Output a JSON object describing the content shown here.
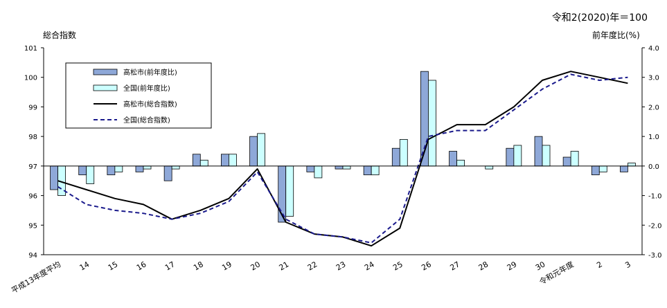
{
  "chart_data": {
    "type": "bar",
    "title": "",
    "note": "令和2(2020)年＝100",
    "ylabel_left": "総合指数",
    "ylabel_right": "前年度比(%)",
    "ylim_left": [
      94,
      101
    ],
    "ylim_right": [
      -3.0,
      4.0
    ],
    "yticks_left": [
      "94",
      "95",
      "96",
      "97",
      "98",
      "99",
      "100",
      "101"
    ],
    "yticks_right": [
      "-3.0",
      "-2.0",
      "-1.0",
      "0.0",
      "1.0",
      "2.0",
      "3.0",
      "4.0"
    ],
    "categories": [
      "平成13年度平均",
      "14",
      "15",
      "16",
      "17",
      "18",
      "19",
      "20",
      "21",
      "22",
      "23",
      "24",
      "25",
      "26",
      "27",
      "28",
      "29",
      "30",
      "令和元年度",
      "2",
      "3"
    ],
    "series": [
      {
        "name": "高松市(前年度比)",
        "kind": "bar",
        "axis": "right",
        "color": "#8ea8d8",
        "values": [
          -0.8,
          -0.3,
          -0.3,
          -0.2,
          -0.5,
          0.4,
          0.4,
          1.0,
          -1.9,
          -0.2,
          -0.1,
          -0.3,
          0.6,
          3.2,
          0.5,
          0.0,
          0.6,
          1.0,
          0.3,
          -0.3,
          -0.2
        ]
      },
      {
        "name": "全国(前年度比)",
        "kind": "bar",
        "axis": "right",
        "color": "#ccffff",
        "values": [
          -1.0,
          -0.6,
          -0.2,
          -0.1,
          -0.1,
          0.2,
          0.4,
          1.1,
          -1.7,
          -0.4,
          -0.1,
          -0.3,
          0.9,
          2.9,
          0.2,
          -0.1,
          0.7,
          0.7,
          0.5,
          -0.2,
          0.1
        ]
      },
      {
        "name": "高松市(総合指数)",
        "kind": "line",
        "axis": "left",
        "color": "#000000",
        "dash": "solid",
        "values": [
          96.5,
          96.2,
          95.9,
          95.7,
          95.2,
          95.5,
          95.9,
          96.9,
          95.1,
          94.7,
          94.6,
          94.3,
          94.9,
          97.9,
          98.4,
          98.4,
          99.0,
          99.9,
          100.2,
          100.0,
          99.8
        ]
      },
      {
        "name": "全国(総合指数)",
        "kind": "line",
        "axis": "left",
        "color": "#1a1a8c",
        "dash": "dashed",
        "values": [
          96.3,
          95.7,
          95.5,
          95.4,
          95.2,
          95.4,
          95.8,
          96.8,
          95.2,
          94.7,
          94.6,
          94.4,
          95.2,
          98.0,
          98.2,
          98.2,
          98.9,
          99.6,
          100.1,
          99.9,
          100.0
        ]
      }
    ],
    "legend_position": "top-left",
    "grid": false
  }
}
